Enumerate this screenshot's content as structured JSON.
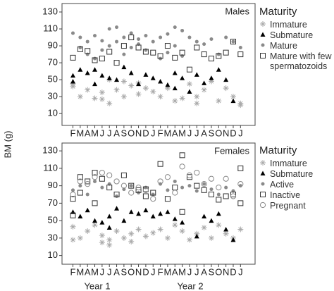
{
  "chart_data": [
    {
      "type": "scatter",
      "title": "Males",
      "ylabel": "BM (g)",
      "legend_title": "Maturity",
      "xlim": [
        -1.5,
        25
      ],
      "ylim": [
        -4,
        140
      ],
      "yticks": [
        10,
        30,
        50,
        70,
        90,
        110,
        130
      ],
      "xticks": [
        {
          "value": 0,
          "label": "F"
        },
        {
          "value": 1,
          "label": "M"
        },
        {
          "value": 2,
          "label": "A"
        },
        {
          "value": 3,
          "label": "M"
        },
        {
          "value": 4,
          "label": "J"
        },
        {
          "value": 5,
          "label": "J"
        },
        {
          "value": 6,
          "label": "A"
        },
        {
          "value": 7,
          "label": "S"
        },
        {
          "value": 8,
          "label": "O"
        },
        {
          "value": 9,
          "label": "N"
        },
        {
          "value": 10,
          "label": "D"
        },
        {
          "value": 11,
          "label": "J"
        },
        {
          "value": 12,
          "label": "F"
        },
        {
          "value": 13,
          "label": "M"
        },
        {
          "value": 14,
          "label": "A"
        },
        {
          "value": 15,
          "label": "M"
        },
        {
          "value": 16,
          "label": "J"
        },
        {
          "value": 17,
          "label": "J"
        },
        {
          "value": 18,
          "label": "A"
        },
        {
          "value": 19,
          "label": "S"
        },
        {
          "value": 20,
          "label": "O"
        },
        {
          "value": 21,
          "label": "N"
        },
        {
          "value": 22,
          "label": "D"
        },
        {
          "value": 23,
          "label": "J"
        }
      ],
      "series": [
        {
          "name": "Immature",
          "marker": "asterisk",
          "color": "#aaaaaa",
          "x": [
            0,
            0,
            1,
            2,
            3,
            4,
            4,
            5,
            5,
            6,
            7,
            7,
            8,
            9,
            9,
            10,
            11,
            12,
            13,
            14,
            15,
            16,
            17,
            17,
            18,
            19,
            20,
            21,
            22,
            23,
            23
          ],
          "values": [
            45,
            42,
            30,
            38,
            28,
            35,
            27,
            50,
            22,
            38,
            48,
            30,
            43,
            33,
            46,
            40,
            36,
            30,
            40,
            25,
            28,
            45,
            30,
            22,
            38,
            48,
            25,
            40,
            30,
            22,
            20
          ]
        },
        {
          "name": "Submature",
          "marker": "triangle",
          "color": "#000000",
          "x": [
            0,
            0,
            1,
            2,
            3,
            3,
            4,
            5,
            6,
            7,
            8,
            9,
            10,
            11,
            12,
            13,
            14,
            14,
            15,
            16,
            17,
            18,
            19,
            20,
            21,
            22
          ],
          "values": [
            55,
            48,
            62,
            58,
            62,
            45,
            55,
            52,
            50,
            65,
            58,
            45,
            56,
            52,
            48,
            44,
            58,
            40,
            52,
            36,
            56,
            46,
            52,
            62,
            50,
            25
          ]
        },
        {
          "name": "Mature",
          "marker": "dot",
          "color": "#8a8a8a",
          "x": [
            0,
            1,
            1,
            2,
            2,
            3,
            3,
            4,
            4,
            5,
            5,
            6,
            6,
            7,
            7,
            8,
            8,
            9,
            9,
            10,
            10,
            11,
            12,
            12,
            13,
            13,
            14,
            14,
            15,
            15,
            16,
            17,
            18,
            19,
            20,
            21,
            22,
            23
          ],
          "values": [
            105,
            100,
            88,
            95,
            80,
            102,
            75,
            96,
            85,
            110,
            90,
            112,
            95,
            100,
            80,
            105,
            88,
            98,
            92,
            102,
            85,
            95,
            100,
            75,
            104,
            82,
            112,
            90,
            108,
            78,
            100,
            95,
            92,
            98,
            80,
            100,
            95,
            88
          ]
        },
        {
          "name": "Mature with few spermatozoids",
          "marker": "square",
          "color": "#333333",
          "x": [
            0,
            1,
            2,
            3,
            4,
            5,
            6,
            7,
            8,
            9,
            10,
            11,
            12,
            13,
            14,
            15,
            16,
            17,
            18,
            19,
            20,
            21,
            22,
            23
          ],
          "values": [
            76,
            86,
            84,
            73,
            75,
            83,
            70,
            90,
            100,
            88,
            83,
            82,
            78,
            90,
            76,
            82,
            62,
            88,
            80,
            75,
            78,
            82,
            95,
            80
          ]
        }
      ]
    },
    {
      "type": "scatter",
      "title": "Females",
      "legend_title": "Maturity",
      "xlim": [
        -1.5,
        25
      ],
      "ylim": [
        0,
        139
      ],
      "yticks": [
        10,
        30,
        50,
        70,
        90,
        110,
        130
      ],
      "group_labels": [
        "Year 1",
        "Year 2"
      ],
      "xticks": [
        {
          "value": 0,
          "label": "F"
        },
        {
          "value": 1,
          "label": "M"
        },
        {
          "value": 2,
          "label": "A"
        },
        {
          "value": 3,
          "label": "M"
        },
        {
          "value": 4,
          "label": "J"
        },
        {
          "value": 5,
          "label": "J"
        },
        {
          "value": 6,
          "label": "A"
        },
        {
          "value": 7,
          "label": "S"
        },
        {
          "value": 8,
          "label": "O"
        },
        {
          "value": 9,
          "label": "N"
        },
        {
          "value": 10,
          "label": "D"
        },
        {
          "value": 11,
          "label": "J"
        },
        {
          "value": 12,
          "label": "F"
        },
        {
          "value": 13,
          "label": "M"
        },
        {
          "value": 14,
          "label": "A"
        },
        {
          "value": 15,
          "label": "M"
        },
        {
          "value": 16,
          "label": "J"
        },
        {
          "value": 17,
          "label": "J"
        },
        {
          "value": 18,
          "label": "A"
        },
        {
          "value": 19,
          "label": "S"
        },
        {
          "value": 20,
          "label": "O"
        },
        {
          "value": 21,
          "label": "N"
        },
        {
          "value": 22,
          "label": "D"
        },
        {
          "value": 23,
          "label": "J"
        }
      ],
      "series": [
        {
          "name": "Immature",
          "marker": "asterisk",
          "color": "#aaaaaa",
          "x": [
            0,
            0,
            1,
            2,
            3,
            4,
            4,
            5,
            5,
            6,
            7,
            8,
            8,
            9,
            10,
            11,
            12,
            13,
            14,
            15,
            16,
            17,
            18,
            19,
            20,
            21,
            22,
            23
          ],
          "values": [
            43,
            28,
            30,
            38,
            45,
            33,
            25,
            28,
            22,
            38,
            30,
            35,
            26,
            40,
            32,
            36,
            40,
            30,
            45,
            38,
            28,
            35,
            42,
            30,
            45,
            35,
            30,
            40
          ]
        },
        {
          "name": "Submature",
          "marker": "triangle",
          "color": "#000000",
          "x": [
            0,
            1,
            2,
            3,
            4,
            5,
            5,
            6,
            7,
            8,
            9,
            10,
            11,
            12,
            13,
            14,
            15,
            17,
            18,
            19,
            20,
            21,
            22
          ],
          "values": [
            60,
            55,
            62,
            50,
            48,
            55,
            42,
            64,
            50,
            60,
            58,
            62,
            55,
            58,
            60,
            52,
            48,
            32,
            55,
            50,
            58,
            40,
            28
          ]
        },
        {
          "name": "Active",
          "marker": "dot",
          "color": "#8a8a8a",
          "x": [
            0,
            1,
            2,
            3,
            4,
            5,
            6,
            7,
            8,
            9,
            10,
            11,
            12,
            13,
            14,
            15,
            16,
            17,
            18,
            19,
            20,
            21,
            22,
            23
          ],
          "values": [
            85,
            90,
            80,
            95,
            88,
            92,
            78,
            86,
            90,
            82,
            88,
            80,
            92,
            85,
            95,
            88,
            90,
            84,
            92,
            86,
            80,
            88,
            84,
            90
          ]
        },
        {
          "name": "Inactive",
          "marker": "square",
          "color": "#333333",
          "x": [
            0,
            0,
            1,
            1,
            2,
            3,
            3,
            4,
            5,
            6,
            7,
            8,
            9,
            10,
            10,
            11,
            12,
            13,
            14,
            15,
            15,
            16,
            17,
            18,
            19,
            20,
            21,
            22,
            23,
            23
          ],
          "values": [
            75,
            56,
            100,
            82,
            95,
            105,
            70,
            98,
            88,
            80,
            102,
            90,
            85,
            86,
            78,
            82,
            115,
            75,
            88,
            125,
            60,
            100,
            90,
            85,
            80,
            74,
            78,
            80,
            110,
            70
          ]
        },
        {
          "name": "Pregnant",
          "marker": "circle",
          "color": "#888888",
          "x": [
            0,
            1,
            2,
            3,
            4,
            5,
            6,
            7,
            8,
            9,
            10,
            11,
            12,
            13,
            14,
            15,
            16,
            17,
            18,
            19,
            20,
            21,
            22,
            23
          ],
          "values": [
            80,
            95,
            92,
            100,
            105,
            102,
            95,
            90,
            82,
            88,
            85,
            75,
            95,
            100,
            82,
            112,
            102,
            105,
            92,
            98,
            88,
            98,
            78,
            92
          ]
        }
      ]
    }
  ]
}
